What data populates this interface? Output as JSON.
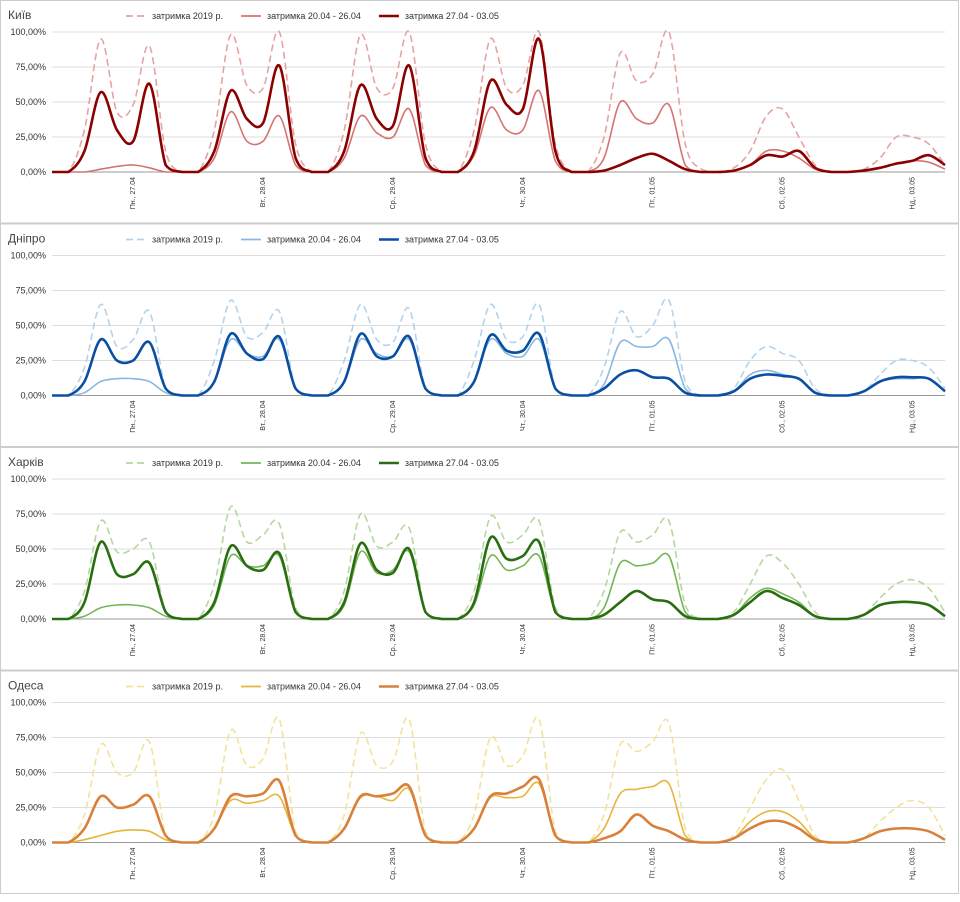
{
  "chart_data": [
    {
      "type": "line",
      "title": "Київ",
      "legend": "top",
      "grid": true,
      "categories": [
        null,
        null,
        null,
        null,
        null,
        "Пн., 27.04",
        null,
        null,
        null,
        null,
        null,
        null,
        null,
        "Вт., 28.04",
        null,
        null,
        null,
        null,
        null,
        null,
        null,
        "Ср., 29.04",
        null,
        null,
        null,
        null,
        null,
        null,
        null,
        "Чт., 30.04",
        null,
        null,
        null,
        null,
        null,
        null,
        null,
        "Пт., 01.05",
        null,
        null,
        null,
        null,
        null,
        null,
        null,
        "Сб., 02.05",
        null,
        null,
        null,
        null,
        null,
        null,
        null,
        "Нд., 03.05",
        null,
        null
      ],
      "ylim": [
        0,
        100
      ],
      "yticks": [
        {
          "value": 0,
          "label": "0,00%"
        },
        {
          "value": 25,
          "label": "25,00%"
        },
        {
          "value": 50,
          "label": "50,00%"
        },
        {
          "value": 75,
          "label": "75,00%"
        },
        {
          "value": 100,
          "label": "100,00%"
        }
      ],
      "series": [
        {
          "name": "затримка 2019 р.",
          "color": "#e6a3a3",
          "dashed": true,
          "values": [
            0,
            0,
            30,
            95,
            43,
            48,
            90,
            15,
            0,
            0,
            30,
            98,
            62,
            60,
            100,
            20,
            0,
            0,
            30,
            98,
            60,
            60,
            100,
            20,
            0,
            0,
            30,
            95,
            60,
            62,
            100,
            20,
            0,
            0,
            25,
            85,
            65,
            70,
            100,
            20,
            2,
            0,
            3,
            15,
            40,
            45,
            25,
            5,
            0,
            0,
            2,
            10,
            25,
            25,
            20,
            5
          ]
        },
        {
          "name": "затримка 20.04 - 26.04",
          "color": "#d67373",
          "values": [
            0,
            0,
            0,
            2,
            4,
            5,
            3,
            0,
            0,
            0,
            10,
            43,
            22,
            22,
            40,
            5,
            0,
            0,
            10,
            40,
            28,
            25,
            45,
            5,
            0,
            0,
            12,
            46,
            30,
            30,
            58,
            8,
            0,
            0,
            10,
            50,
            38,
            35,
            48,
            5,
            0,
            0,
            1,
            5,
            15,
            15,
            10,
            2,
            0,
            0,
            1,
            3,
            6,
            8,
            7,
            2
          ]
        },
        {
          "name": "затримка 27.04 - 03.05",
          "color": "#8b0000",
          "values": [
            0,
            0,
            15,
            57,
            30,
            22,
            63,
            5,
            0,
            0,
            15,
            58,
            38,
            35,
            76,
            10,
            0,
            0,
            15,
            62,
            38,
            33,
            76,
            10,
            0,
            0,
            15,
            65,
            48,
            45,
            95,
            15,
            0,
            0,
            1,
            5,
            10,
            13,
            8,
            2,
            0,
            0,
            1,
            5,
            12,
            11,
            15,
            3,
            0,
            0,
            1,
            3,
            6,
            8,
            12,
            5
          ]
        }
      ]
    },
    {
      "type": "line",
      "title": "Дніпро",
      "legend": "top",
      "grid": true,
      "categories": [
        null,
        null,
        null,
        null,
        null,
        "Пн., 27.04",
        null,
        null,
        null,
        null,
        null,
        null,
        null,
        "Вт., 28.04",
        null,
        null,
        null,
        null,
        null,
        null,
        null,
        "Ср., 29.04",
        null,
        null,
        null,
        null,
        null,
        null,
        null,
        "Чт., 30.04",
        null,
        null,
        null,
        null,
        null,
        null,
        null,
        "Пт., 01.05",
        null,
        null,
        null,
        null,
        null,
        null,
        null,
        "Сб., 02.05",
        null,
        null,
        null,
        null,
        null,
        null,
        null,
        "Нд., 03.05",
        null,
        null
      ],
      "ylim": [
        0,
        100
      ],
      "yticks": [
        {
          "value": 0,
          "label": "0,00%"
        },
        {
          "value": 25,
          "label": "25,00%"
        },
        {
          "value": 50,
          "label": "50,00%"
        },
        {
          "value": 75,
          "label": "75,00%"
        },
        {
          "value": 100,
          "label": "100,00%"
        }
      ],
      "series": [
        {
          "name": "затримка 2019 р.",
          "color": "#b3d3ec",
          "dashed": true,
          "values": [
            0,
            0,
            20,
            65,
            35,
            40,
            60,
            5,
            0,
            0,
            25,
            68,
            42,
            45,
            60,
            5,
            0,
            0,
            25,
            65,
            40,
            38,
            62,
            5,
            0,
            0,
            25,
            65,
            40,
            42,
            65,
            5,
            0,
            0,
            20,
            60,
            42,
            50,
            68,
            10,
            0,
            0,
            5,
            25,
            35,
            30,
            25,
            5,
            0,
            0,
            3,
            15,
            25,
            25,
            20,
            5
          ]
        },
        {
          "name": "затримка 20.04 - 26.04",
          "color": "#8ab8e0",
          "values": [
            0,
            0,
            2,
            10,
            12,
            12,
            10,
            2,
            0,
            0,
            10,
            40,
            30,
            28,
            40,
            5,
            0,
            0,
            10,
            40,
            30,
            28,
            40,
            5,
            0,
            0,
            10,
            40,
            30,
            28,
            40,
            5,
            0,
            0,
            8,
            38,
            35,
            35,
            40,
            5,
            0,
            0,
            3,
            15,
            18,
            15,
            12,
            2,
            0,
            0,
            3,
            10,
            12,
            12,
            12,
            3
          ]
        },
        {
          "name": "затримка 27.04 - 03.05",
          "color": "#0b4fa3",
          "values": [
            0,
            0,
            10,
            40,
            25,
            25,
            38,
            5,
            0,
            0,
            10,
            44,
            30,
            26,
            42,
            5,
            0,
            0,
            10,
            44,
            28,
            28,
            42,
            5,
            0,
            0,
            10,
            43,
            32,
            32,
            44,
            5,
            0,
            0,
            5,
            15,
            18,
            13,
            12,
            2,
            0,
            0,
            3,
            12,
            15,
            14,
            12,
            2,
            0,
            0,
            3,
            10,
            13,
            13,
            12,
            3
          ]
        }
      ]
    },
    {
      "type": "line",
      "title": "Харків",
      "legend": "top",
      "grid": true,
      "categories": [
        null,
        null,
        null,
        null,
        null,
        "Пн., 27.04",
        null,
        null,
        null,
        null,
        null,
        null,
        null,
        "Вт., 28.04",
        null,
        null,
        null,
        null,
        null,
        null,
        null,
        "Ср., 29.04",
        null,
        null,
        null,
        null,
        null,
        null,
        null,
        "Чт., 30.04",
        null,
        null,
        null,
        null,
        null,
        null,
        null,
        "Пт., 01.05",
        null,
        null,
        null,
        null,
        null,
        null,
        null,
        "Сб., 02.05",
        null,
        null,
        null,
        null,
        null,
        null,
        null,
        "Нд., 03.05",
        null,
        null
      ],
      "ylim": [
        0,
        100
      ],
      "yticks": [
        {
          "value": 0,
          "label": "0,00%"
        },
        {
          "value": 25,
          "label": "25,00%"
        },
        {
          "value": 50,
          "label": "50,00%"
        },
        {
          "value": 75,
          "label": "75,00%"
        },
        {
          "value": 100,
          "label": "100,00%"
        }
      ],
      "series": [
        {
          "name": "затримка 2019 р.",
          "color": "#b5d8a0",
          "dashed": true,
          "values": [
            0,
            0,
            20,
            70,
            48,
            50,
            55,
            5,
            0,
            0,
            25,
            80,
            55,
            60,
            68,
            8,
            0,
            0,
            20,
            75,
            52,
            55,
            65,
            5,
            0,
            0,
            20,
            73,
            55,
            60,
            70,
            8,
            0,
            0,
            20,
            62,
            55,
            60,
            70,
            10,
            0,
            0,
            5,
            25,
            45,
            40,
            25,
            5,
            0,
            0,
            3,
            15,
            25,
            28,
            22,
            5
          ]
        },
        {
          "name": "затримка 20.04 - 26.04",
          "color": "#74b657",
          "values": [
            0,
            0,
            2,
            8,
            10,
            10,
            8,
            2,
            0,
            0,
            10,
            45,
            38,
            38,
            45,
            5,
            0,
            0,
            10,
            48,
            33,
            35,
            48,
            5,
            0,
            0,
            10,
            45,
            35,
            38,
            45,
            5,
            0,
            0,
            8,
            40,
            38,
            40,
            45,
            5,
            0,
            0,
            3,
            15,
            22,
            18,
            12,
            2,
            0,
            0,
            3,
            10,
            12,
            12,
            10,
            2
          ]
        },
        {
          "name": "затримка 27.04 - 03.05",
          "color": "#2a6e12",
          "values": [
            0,
            0,
            12,
            55,
            32,
            32,
            40,
            5,
            0,
            0,
            12,
            52,
            38,
            35,
            47,
            5,
            0,
            0,
            12,
            54,
            35,
            33,
            50,
            5,
            0,
            0,
            12,
            58,
            43,
            45,
            55,
            5,
            0,
            0,
            3,
            12,
            20,
            14,
            12,
            2,
            0,
            0,
            3,
            12,
            20,
            15,
            10,
            2,
            0,
            0,
            3,
            10,
            12,
            12,
            10,
            2
          ]
        }
      ]
    },
    {
      "type": "line",
      "title": "Одеса",
      "legend": "top",
      "grid": true,
      "categories": [
        null,
        null,
        null,
        null,
        null,
        "Пн., 27.04",
        null,
        null,
        null,
        null,
        null,
        null,
        null,
        "Вт., 28.04",
        null,
        null,
        null,
        null,
        null,
        null,
        null,
        "Ср., 29.04",
        null,
        null,
        null,
        null,
        null,
        null,
        null,
        "Чт., 30.04",
        null,
        null,
        null,
        null,
        null,
        null,
        null,
        "Пт., 01.05",
        null,
        null,
        null,
        null,
        null,
        null,
        null,
        "Сб., 02.05",
        null,
        null,
        null,
        null,
        null,
        null,
        null,
        "Нд., 03.05",
        null,
        null
      ],
      "ylim": [
        0,
        100
      ],
      "yticks": [
        {
          "value": 0,
          "label": "0,00%"
        },
        {
          "value": 25,
          "label": "25,00%"
        },
        {
          "value": 50,
          "label": "50,00%"
        },
        {
          "value": 75,
          "label": "75,00%"
        },
        {
          "value": 100,
          "label": "100,00%"
        }
      ],
      "series": [
        {
          "name": "затримка 2019 р.",
          "color": "#f2e39a",
          "dashed": true,
          "values": [
            0,
            0,
            20,
            70,
            50,
            50,
            72,
            5,
            0,
            0,
            20,
            80,
            55,
            60,
            88,
            8,
            0,
            0,
            20,
            78,
            55,
            58,
            88,
            8,
            0,
            0,
            20,
            75,
            55,
            62,
            88,
            8,
            0,
            0,
            20,
            70,
            65,
            72,
            85,
            10,
            0,
            0,
            5,
            25,
            45,
            52,
            30,
            5,
            0,
            0,
            3,
            15,
            25,
            30,
            25,
            5
          ]
        },
        {
          "name": "затримка 20.04 - 26.04",
          "color": "#e9b43c",
          "values": [
            0,
            0,
            2,
            5,
            8,
            9,
            8,
            2,
            0,
            0,
            10,
            30,
            28,
            30,
            33,
            5,
            0,
            0,
            10,
            32,
            33,
            30,
            38,
            5,
            0,
            0,
            10,
            32,
            32,
            33,
            42,
            5,
            0,
            0,
            10,
            35,
            38,
            40,
            42,
            5,
            0,
            0,
            3,
            15,
            22,
            22,
            15,
            3,
            0,
            0,
            3,
            8,
            10,
            10,
            8,
            2
          ]
        },
        {
          "name": "затримка 27.04 - 03.05",
          "color": "#d9803a",
          "values": [
            0,
            0,
            10,
            33,
            25,
            27,
            33,
            5,
            0,
            0,
            10,
            33,
            33,
            35,
            44,
            5,
            0,
            0,
            10,
            33,
            33,
            35,
            40,
            5,
            0,
            0,
            10,
            33,
            35,
            40,
            45,
            5,
            0,
            0,
            3,
            8,
            20,
            12,
            8,
            2,
            0,
            0,
            3,
            10,
            15,
            15,
            10,
            2,
            0,
            0,
            3,
            8,
            10,
            10,
            8,
            2
          ]
        }
      ]
    }
  ]
}
